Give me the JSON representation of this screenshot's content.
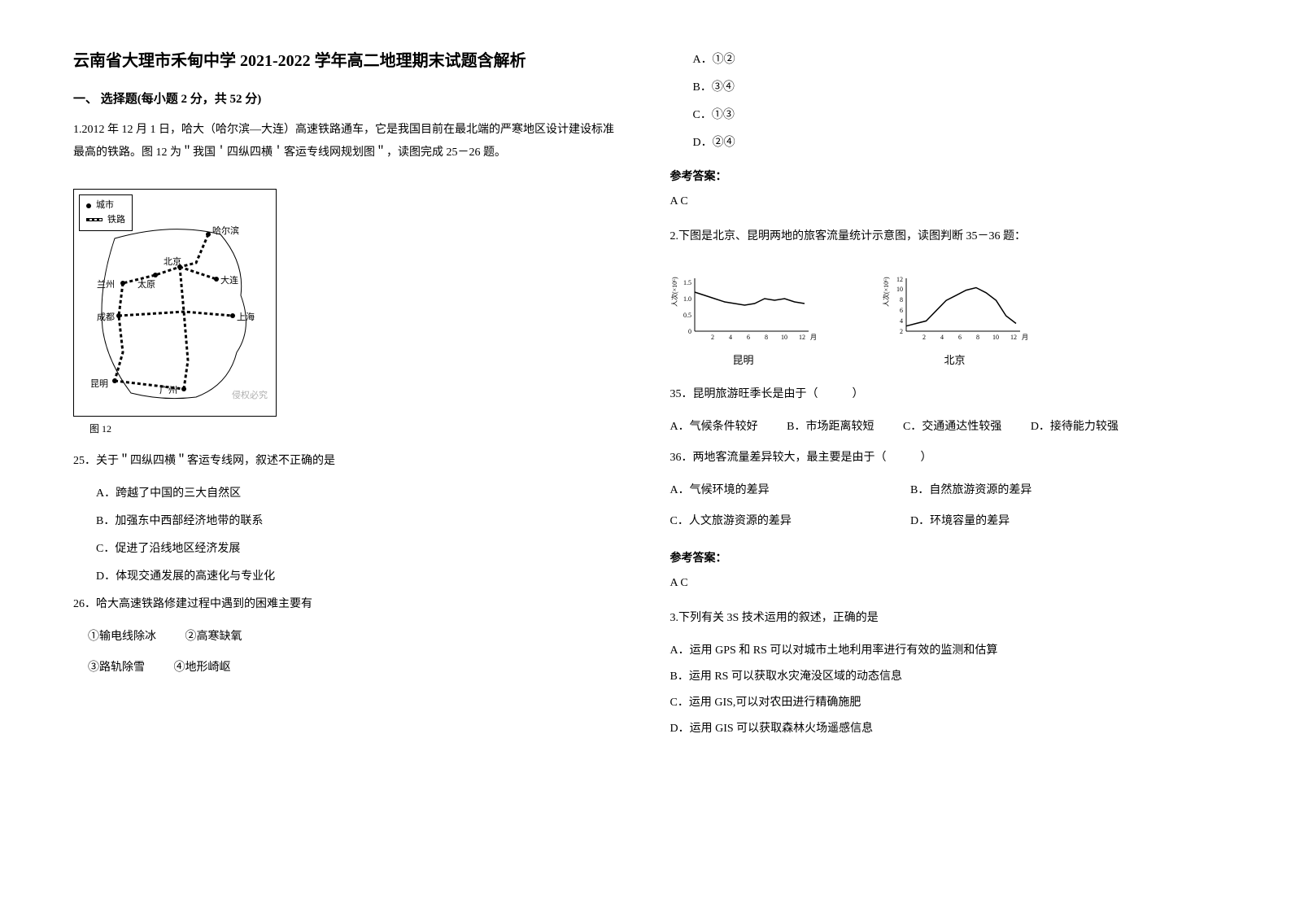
{
  "doc": {
    "title": "云南省大理市禾甸中学 2021-2022 学年高二地理期末试题含解析",
    "section1": "一、 选择题(每小题 2 分，共 52 分)"
  },
  "q1": {
    "stem": "1.2012 年 12 月 1 日，哈大（哈尔滨—大连）高速铁路通车，它是我国目前在最北端的严寒地区设计建设标准最高的铁路。图 12 为＂我国＇四纵四横＇客运专线网规划图＂，读图完成 25－26 题。",
    "map": {
      "legend_city": "城市",
      "legend_rail": "铁路",
      "cities": {
        "harbin": "哈尔滨",
        "beijing": "北京",
        "dalian": "大连",
        "lanzhou": "兰州",
        "taiyuan": "太原",
        "chengdu": "成都",
        "shanghai": "上海",
        "kunming": "昆明",
        "guangzhou": "广州"
      },
      "caption": "图 12",
      "watermark": "侵权必究"
    },
    "q25": {
      "text": "25．关于＂四纵四横＂客运专线网，叙述不正确的是",
      "a": "A．跨越了中国的三大自然区",
      "b": "B．加强东中西部经济地带的联系",
      "c": "C．促进了沿线地区经济发展",
      "d": "D．体现交通发展的高速化与专业化"
    },
    "q26": {
      "text": "26．哈大高速铁路修建过程中遇到的困难主要有",
      "line1a": "①输电线除冰",
      "line1b": "②高寒缺氧",
      "line2a": "③路轨除雪",
      "line2b": "④地形崎岖",
      "optA": "A．①②",
      "optB": "B．③④",
      "optC": "C．①③",
      "optD": "D．②④"
    },
    "answerHeader": "参考答案：",
    "answer": "A  C"
  },
  "q2": {
    "stem": "2.下图是北京、昆明两地的旅客流量统计示意图，读图判断 35－36 题：",
    "chart_kunming": {
      "label": "昆明",
      "ylabel": "人次 (×10⁶)",
      "ylim": [
        0,
        1.5
      ],
      "yticks": [
        0,
        0.5,
        1.0,
        1.5
      ],
      "xlim": [
        1,
        12
      ],
      "xticks": [
        2,
        4,
        6,
        8,
        10,
        12
      ],
      "xlabel": "月",
      "points": [
        [
          1,
          1.2
        ],
        [
          2,
          1.1
        ],
        [
          3,
          1.0
        ],
        [
          4,
          0.9
        ],
        [
          5,
          0.85
        ],
        [
          6,
          0.8
        ],
        [
          7,
          0.85
        ],
        [
          8,
          1.0
        ],
        [
          9,
          0.95
        ],
        [
          10,
          1.0
        ],
        [
          11,
          0.9
        ],
        [
          12,
          0.85
        ]
      ],
      "line_color": "#000000",
      "axis_color": "#000000",
      "fontsize": 9
    },
    "chart_beijing": {
      "label": "北京",
      "ylabel": "人次 (×10⁶)",
      "ylim": [
        2,
        12
      ],
      "yticks": [
        2,
        4,
        6,
        8,
        10,
        12
      ],
      "xlim": [
        1,
        12
      ],
      "xticks": [
        2,
        4,
        6,
        8,
        10,
        12
      ],
      "xlabel": "月",
      "points": [
        [
          1,
          3
        ],
        [
          2,
          3.5
        ],
        [
          3,
          4
        ],
        [
          4,
          6
        ],
        [
          5,
          8
        ],
        [
          6,
          9
        ],
        [
          7,
          10
        ],
        [
          8,
          10.5
        ],
        [
          9,
          9.5
        ],
        [
          10,
          8
        ],
        [
          11,
          5
        ],
        [
          12,
          3.5
        ]
      ],
      "line_color": "#000000",
      "axis_color": "#000000",
      "fontsize": 9
    },
    "q35": {
      "text": "35．昆明旅游旺季长是由于（　　　）",
      "a": "A．气候条件较好",
      "b": "B．市场距离较短",
      "c": "C．交通通达性较强",
      "d": "D．接待能力较强"
    },
    "q36": {
      "text": "36．两地客流量差异较大，最主要是由于（　　　）",
      "a": "A．气候环境的差异",
      "b": "B．自然旅游资源的差异",
      "c": "C．人文旅游资源的差异",
      "d": "D．环境容量的差异"
    },
    "answerHeader": "参考答案：",
    "answer": "A  C"
  },
  "q3": {
    "stem": "3.下列有关 3S 技术运用的叙述，正确的是",
    "a": "A．运用 GPS 和 RS 可以对城市土地利用率进行有效的监测和估算",
    "b": "B．运用 RS 可以获取水灾淹没区域的动态信息",
    "c": "C．运用 GIS,可以对农田进行精确施肥",
    "d": "D．运用 GIS 可以获取森林火场遥感信息"
  },
  "colors": {
    "text": "#000000",
    "bg": "#ffffff",
    "watermark": "#b0b0b0"
  }
}
